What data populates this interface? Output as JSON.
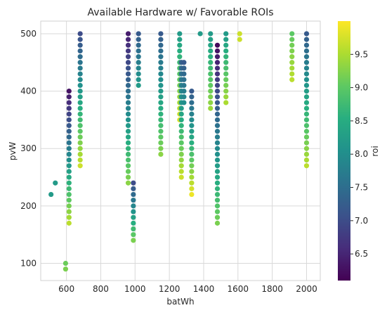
{
  "chart_data": {
    "type": "scatter",
    "title": "Available Hardware w/ Favorable ROIs",
    "xlabel": "batWh",
    "ylabel": "pvW",
    "colorbar_label": "roi",
    "xlim": [
      450,
      2080
    ],
    "ylim": [
      70,
      522
    ],
    "x_ticks": [
      600,
      800,
      1000,
      1200,
      1400,
      1600,
      1800,
      2000
    ],
    "y_ticks": [
      100,
      200,
      300,
      400,
      500
    ],
    "colorbar_range": [
      6.1,
      10.0
    ],
    "colorbar_ticks": [
      6.5,
      7.0,
      7.5,
      8.0,
      8.5,
      9.0,
      9.5
    ],
    "colormap": "viridis",
    "grid": true,
    "columns": [
      {
        "x": 510,
        "points": [
          {
            "y": 220,
            "roi": 8.2
          }
        ]
      },
      {
        "x": 535,
        "points": [
          {
            "y": 240,
            "roi": 8.2
          }
        ]
      },
      {
        "x": 595,
        "points": [
          {
            "y": 90,
            "roi": 9.2
          },
          {
            "y": 100,
            "roi": 9.1
          }
        ]
      },
      {
        "x": 615,
        "y_start": 170,
        "y_end": 400,
        "step": 10,
        "roi_start": 9.6,
        "roi_end": 6.3
      },
      {
        "x": 680,
        "y_start": 270,
        "y_end": 500,
        "step": 10,
        "roi_start": 9.7,
        "roi_end": 7.0
      },
      {
        "x": 960,
        "y_start": 240,
        "y_end": 500,
        "step": 10,
        "roi_start": 9.3,
        "roi_end": 6.4
      },
      {
        "x": 990,
        "y_start": 140,
        "y_end": 240,
        "step": 10,
        "roi_start": 9.2,
        "roi_end": 7.0
      },
      {
        "x": 1020,
        "y_start": 410,
        "y_end": 500,
        "step": 10,
        "roi_start": 8.2,
        "roi_end": 7.2
      },
      {
        "x": 1150,
        "y_start": 290,
        "y_end": 500,
        "step": 10,
        "roi_start": 9.3,
        "roi_end": 7.2
      },
      {
        "x": 1260,
        "y_start": 350,
        "y_end": 500,
        "step": 10,
        "roi_start": 9.8,
        "roi_end": 8.2
      },
      {
        "x": 1270,
        "y_start": 250,
        "y_end": 450,
        "step": 10,
        "roi_start": 9.7,
        "roi_end": 7.3
      },
      {
        "x": 1285,
        "y_start": 380,
        "y_end": 450,
        "step": 10,
        "roi_start": 8.0,
        "roi_end": 7.2
      },
      {
        "x": 1330,
        "y_start": 220,
        "y_end": 400,
        "step": 10,
        "roi_start": 9.9,
        "roi_end": 7.2
      },
      {
        "x": 1380,
        "points": [
          {
            "y": 500,
            "roi": 8.2
          }
        ]
      },
      {
        "x": 1440,
        "y_start": 370,
        "y_end": 500,
        "step": 10,
        "roi_start": 9.4,
        "roi_end": 8.2
      },
      {
        "x": 1480,
        "y_start": 170,
        "y_end": 480,
        "step": 10,
        "roi_start": 9.2,
        "roi_end": 6.2
      },
      {
        "x": 1530,
        "y_start": 380,
        "y_end": 500,
        "step": 10,
        "roi_start": 9.5,
        "roi_end": 8.2
      },
      {
        "x": 1610,
        "points": [
          {
            "y": 490,
            "roi": 9.7
          },
          {
            "y": 500,
            "roi": 9.7
          }
        ]
      },
      {
        "x": 1915,
        "y_start": 420,
        "y_end": 500,
        "step": 10,
        "roi_start": 9.6,
        "roi_end": 9.0
      },
      {
        "x": 2000,
        "y_start": 270,
        "y_end": 500,
        "step": 10,
        "roi_start": 9.6,
        "roi_end": 7.2
      }
    ]
  }
}
